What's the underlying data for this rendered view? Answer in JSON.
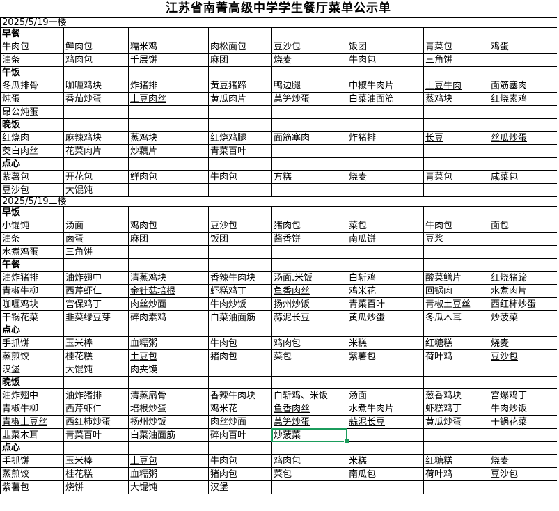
{
  "title": "江苏省南菁高级中学学生餐厅菜单公示单",
  "selection_color": "#1B9C5C",
  "grid_line_color": "#000000",
  "table": {
    "columns": 8,
    "selection": {
      "row": 32,
      "col": 4
    },
    "rows": [
      {
        "type": "date",
        "text": "2025/5/19一楼"
      },
      {
        "type": "section",
        "text": "早餐"
      },
      {
        "type": "cells",
        "cells": [
          "牛肉包",
          "鲜肉包",
          "糯米鸡",
          "肉松面包",
          "豆沙包",
          "饭团",
          "青菜包",
          "鸡蛋"
        ]
      },
      {
        "type": "cells",
        "cells": [
          "油条",
          "鸡肉包",
          "千层饼",
          "麻团",
          "烧麦",
          "牛肉包",
          "三角饼",
          ""
        ]
      },
      {
        "type": "section",
        "text": "午饭"
      },
      {
        "type": "cells",
        "cells": [
          "冬瓜排骨",
          "咖喱鸡块",
          "炸猪排",
          "黄豆猪蹄",
          "鸭边腿",
          "中椒牛肉片",
          "土豆牛肉",
          "面筋塞肉"
        ],
        "underline": [
          6
        ]
      },
      {
        "type": "cells",
        "cells": [
          "炖蛋",
          "番茄炒蛋",
          "土豆肉丝",
          "黄瓜肉片",
          "莴笋炒蛋",
          "白菜油面筋",
          "蒸鸡块",
          "红烧素鸡"
        ],
        "underline": [
          2
        ]
      },
      {
        "type": "cells",
        "cells": [
          "昂公炖蛋",
          "",
          "",
          "",
          "",
          "",
          "",
          ""
        ]
      },
      {
        "type": "section",
        "text": "晚饭"
      },
      {
        "type": "cells",
        "cells": [
          "红烧肉",
          "麻辣鸡块",
          "蒸鸡块",
          "红烧鸡腿",
          "面筋塞肉",
          "炸猪排",
          "长豆",
          "丝瓜炒蛋"
        ],
        "underline": [
          6,
          7
        ]
      },
      {
        "type": "cells",
        "cells": [
          "茭白肉丝",
          "花菜肉片",
          "炒藕片",
          "青菜百叶",
          "",
          "",
          "",
          ""
        ],
        "underline": [
          0
        ]
      },
      {
        "type": "section",
        "text": "点心"
      },
      {
        "type": "cells",
        "cells": [
          "紫薯包",
          "开花包",
          "鲜肉包",
          "牛肉包",
          "方糕",
          "烧麦",
          "青菜包",
          "咸菜包"
        ]
      },
      {
        "type": "cells",
        "cells": [
          "豆沙包",
          "大馄饨",
          "",
          "",
          "",
          "",
          "",
          ""
        ],
        "underline": [
          0
        ]
      },
      {
        "type": "date",
        "text": "2025/5/19二楼"
      },
      {
        "type": "section",
        "text": "早饭"
      },
      {
        "type": "cells",
        "cells": [
          "小馄饨",
          "汤面",
          "鸡肉包",
          "豆沙包",
          "猪肉包",
          "菜包",
          "牛肉包",
          "面包"
        ]
      },
      {
        "type": "cells",
        "cells": [
          "油条",
          "卤蛋",
          "麻团",
          "饭团",
          "酱香饼",
          "南瓜饼",
          "豆浆",
          ""
        ]
      },
      {
        "type": "cells",
        "cells": [
          "水煮鸡蛋",
          "三角饼",
          "",
          "",
          "",
          "",
          "",
          ""
        ]
      },
      {
        "type": "section",
        "text": "午餐"
      },
      {
        "type": "cells",
        "cells": [
          "油炸猪排",
          "油炸翅中",
          "清蒸鸡块",
          "香辣牛肉块",
          "汤面.米饭",
          "白斩鸡",
          "酸菜鳝片",
          "红烧猪蹄"
        ]
      },
      {
        "type": "cells",
        "cells": [
          "青椒牛柳",
          "西芹虾仁",
          "金针菇培根",
          "虾糕鸡丁",
          "鱼香肉丝",
          "鸡米花",
          "回锅肉",
          "水煮肉片"
        ],
        "underline": [
          2,
          4
        ]
      },
      {
        "type": "cells",
        "cells": [
          "咖喱鸡块",
          "宫保鸡丁",
          "肉丝炒面",
          "牛肉炒饭",
          "扬州炒饭",
          "青菜百叶",
          "青椒土豆丝",
          "西红柿炒蛋"
        ],
        "underline": [
          6
        ]
      },
      {
        "type": "cells",
        "cells": [
          "干锅花菜",
          "韭菜绿豆芽",
          "碎肉素鸡",
          "白菜油面筋",
          "蒜泥长豆",
          "黄瓜炒蛋",
          "冬瓜木耳",
          "炒菠菜"
        ]
      },
      {
        "type": "section",
        "text": "点心"
      },
      {
        "type": "cells",
        "cells": [
          "手抓饼",
          "玉米棒",
          "血糯粥",
          "牛肉包",
          "鸡肉包",
          "米糕",
          "红糖糕",
          "烧麦"
        ],
        "underline": [
          2
        ]
      },
      {
        "type": "cells",
        "cells": [
          "蒸煎饺",
          "桂花糕",
          "土豆包",
          "猪肉包",
          "菜包",
          "紫薯包",
          "荷叶鸡",
          "豆沙包"
        ],
        "underline": [
          2,
          7
        ]
      },
      {
        "type": "cells",
        "cells": [
          "汉堡",
          "大馄饨",
          "肉夹馍",
          "",
          "",
          "",
          "",
          ""
        ]
      },
      {
        "type": "section",
        "text": "晚饭"
      },
      {
        "type": "cells",
        "cells": [
          "油炸翅中",
          "油炸猪排",
          "清蒸扇骨",
          "香辣牛肉块",
          "白斩鸡、米饭",
          "汤面",
          "葱香鸡块",
          "宫爆鸡丁"
        ]
      },
      {
        "type": "cells",
        "cells": [
          "青椒牛柳",
          "西芹虾仁",
          "培根炒蛋",
          "鸡米花",
          "鱼香肉丝",
          "水煮牛肉片",
          "虾糕鸡丁",
          "牛肉炒饭"
        ],
        "underline": [
          4
        ]
      },
      {
        "type": "cells",
        "cells": [
          "青椒土豆丝",
          "西红柿炒蛋",
          "扬州炒饭",
          "肉丝炒面",
          "莴笋炒蛋",
          "蒜泥长豆",
          "黄瓜炒蛋",
          "干锅花菜"
        ],
        "underline": [
          0,
          4,
          5
        ]
      },
      {
        "type": "cells",
        "cells": [
          "韭菜木耳",
          "青菜百叶",
          "白菜油面筋",
          "碎肉百叶",
          "炒菠菜",
          "",
          "",
          ""
        ],
        "underline": [
          0
        ]
      },
      {
        "type": "section",
        "text": "点心"
      },
      {
        "type": "cells",
        "cells": [
          "手抓饼",
          "玉米棒",
          "土豆包",
          "牛肉包",
          "鸡肉包",
          "米糕",
          "红糖糕",
          "烧麦"
        ],
        "underline": [
          2
        ]
      },
      {
        "type": "cells",
        "cells": [
          "蒸煎饺",
          "桂花糕",
          "血糯粥",
          "猪肉包",
          "菜包",
          "南瓜包",
          "荷叶鸡",
          "豆沙包"
        ],
        "underline": [
          2,
          7
        ]
      },
      {
        "type": "cells",
        "cells": [
          "紫薯包",
          "烧饼",
          "大馄饨",
          "汉堡",
          "",
          "",
          "",
          ""
        ]
      }
    ]
  }
}
